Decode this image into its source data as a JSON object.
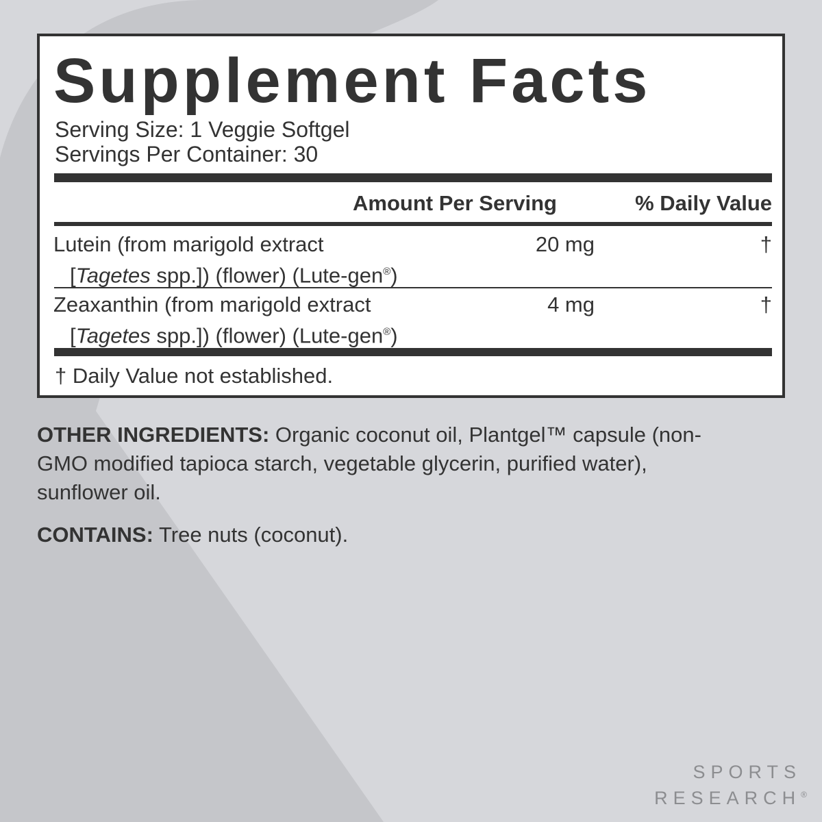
{
  "title": "Supplement Facts",
  "serving_size": "Serving Size: 1 Veggie Softgel",
  "servings_per_container": "Servings Per Container: 30",
  "header": {
    "amount": "Amount Per Serving",
    "dv": "% Daily Value"
  },
  "rows": [
    {
      "line1": "Lutein (from marigold extract",
      "bracket_open": "[",
      "genus": "Tagetes",
      "line2_rest": " spp.]) (flower) (Lute-gen",
      "reg": "®",
      "line2_end": ")",
      "amount": "20 mg",
      "dv": "†"
    },
    {
      "line1": "Zeaxanthin (from marigold extract",
      "bracket_open": "[",
      "genus": "Tagetes",
      "line2_rest": " spp.]) (flower) (Lute-gen",
      "reg": "®",
      "line2_end": ")",
      "amount": "4 mg",
      "dv": "†"
    }
  ],
  "footnote": "† Daily Value not established.",
  "other_ingredients": {
    "label": "OTHER INGREDIENTS:",
    "text": " Organic coconut oil, Plantgel™ capsule (non-GMO modified tapioca starch, vegetable glycerin, purified water), sunflower oil."
  },
  "contains": {
    "label": "CONTAINS:",
    "text": " Tree nuts (coconut)."
  },
  "brand": {
    "line1": "SPORTS",
    "line2": "RESEARCH",
    "reg": "®"
  },
  "colors": {
    "background": "#d6d7db",
    "shape": "#c5c6ca",
    "ink": "#333333",
    "brand": "#8c8d90"
  }
}
